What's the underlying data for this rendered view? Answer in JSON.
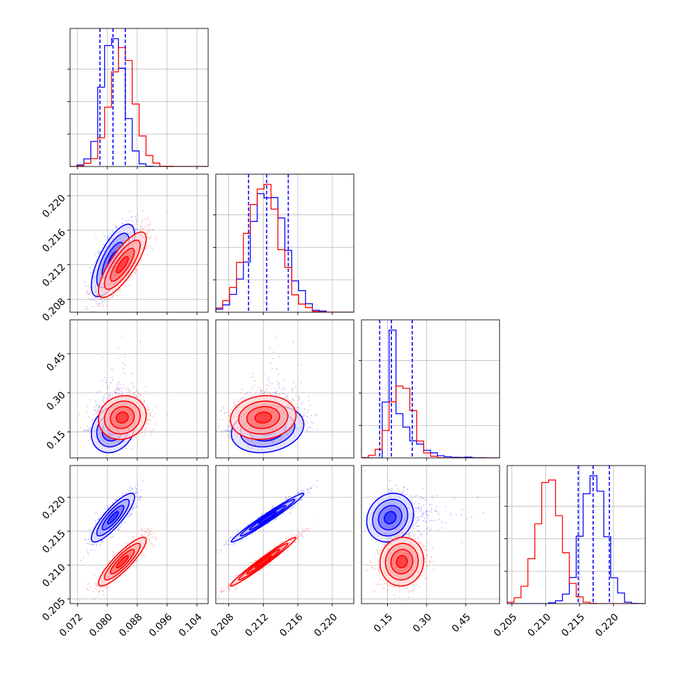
{
  "chart_data": {
    "type": "corner",
    "title": "",
    "colors": {
      "blue": "#0000ff",
      "red": "#ff0000"
    },
    "grid": true,
    "parameters": [
      {
        "xlabel": "",
        "ylabel": "",
        "lim": [
          0.07,
          0.107
        ],
        "ticks": [
          "0.072",
          "0.080",
          "0.088",
          "0.096",
          "0.104"
        ]
      },
      {
        "xlabel": "",
        "ylabel": "",
        "lim": [
          0.2065,
          0.2225
        ],
        "ticks": [
          "0.208",
          "0.212",
          "0.216",
          "0.220"
        ]
      },
      {
        "xlabel": "",
        "ylabel": "",
        "lim": [
          0.05,
          0.58
        ],
        "ticks": [
          "0.15",
          "0.30",
          "0.45"
        ]
      },
      {
        "xlabel": "",
        "ylabel": "",
        "lim": [
          0.2043,
          0.2247
        ],
        "ticks": [
          "0.205",
          "0.210",
          "0.215",
          "0.220"
        ]
      }
    ],
    "series": [
      {
        "name": "",
        "color": "#0000ff",
        "mean": [
          0.0815,
          0.2125,
          0.17,
          0.217
        ],
        "sd": [
          0.0029,
          0.0021,
          0.065,
          0.0018
        ],
        "corr": [
          [
            1,
            0.7,
            0.2,
            0.85
          ],
          [
            0.7,
            1,
            0.2,
            0.98
          ],
          [
            0.2,
            0.2,
            1,
            0.15
          ],
          [
            0.85,
            0.98,
            0.15,
            1
          ]
        ],
        "quantiles_16_50_84": [
          [
            0.078,
            0.0815,
            0.0848
          ],
          [
            0.2103,
            0.2124,
            0.2149
          ],
          [
            0.12,
            0.165,
            0.245
          ],
          [
            0.2148,
            0.217,
            0.2194
          ]
        ]
      },
      {
        "name": "",
        "color": "#ff0000",
        "mean": [
          0.084,
          0.212,
          0.205,
          0.2105
        ],
        "sd": [
          0.0032,
          0.0019,
          0.042,
          0.0018
        ],
        "corr": [
          [
            1,
            0.8,
            0.1,
            0.88
          ],
          [
            0.8,
            1,
            0.1,
            0.98
          ],
          [
            0.1,
            0.1,
            1,
            0.05
          ],
          [
            0.88,
            0.98,
            0.05,
            1
          ]
        ]
      }
    ]
  }
}
